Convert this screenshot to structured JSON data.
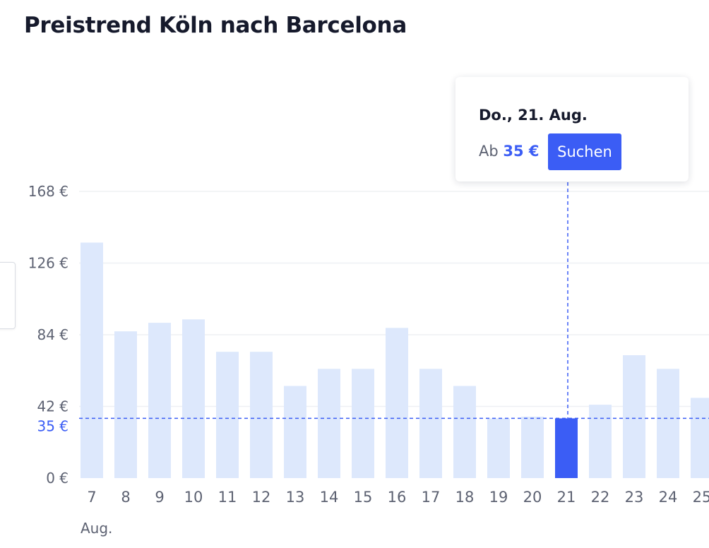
{
  "title": "Preistrend Köln nach Barcelona",
  "tooltip": {
    "date": "Do., 21. Aug.",
    "price_prefix": "Ab",
    "price": "35 €",
    "button_label": "Suchen"
  },
  "colors": {
    "bar": "#dde8fc",
    "bar_selected": "#3b5df5",
    "accent": "#3b5df5",
    "grid": "#eef0f4"
  },
  "chart_data": {
    "type": "bar",
    "title": "Preistrend Köln nach Barcelona",
    "categories": [
      "7",
      "8",
      "9",
      "10",
      "11",
      "12",
      "13",
      "14",
      "15",
      "16",
      "17",
      "18",
      "19",
      "20",
      "21",
      "22",
      "23",
      "24",
      "25"
    ],
    "values": [
      138,
      86,
      91,
      93,
      74,
      74,
      54,
      64,
      64,
      88,
      64,
      54,
      35,
      36,
      35,
      43,
      72,
      64,
      47
    ],
    "x_group_label": "Aug.",
    "y_ticks": [
      0,
      42,
      84,
      126,
      168
    ],
    "y_tick_labels": [
      "0 €",
      "42 €",
      "84 €",
      "126 €",
      "168 €"
    ],
    "ylim": [
      0,
      168
    ],
    "selected_category": "21",
    "reference_line": {
      "value": 35,
      "label": "35 €"
    },
    "grid": true
  }
}
